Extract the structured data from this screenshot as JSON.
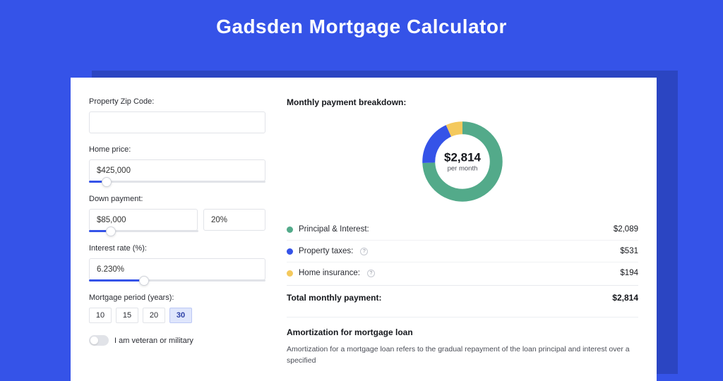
{
  "hero": {
    "title": "Gadsden Mortgage Calculator"
  },
  "form": {
    "zip": {
      "label": "Property Zip Code:",
      "value": ""
    },
    "price": {
      "label": "Home price:",
      "value": "$425,000",
      "slider_pct": 10
    },
    "down": {
      "label": "Down payment:",
      "amount": "$85,000",
      "pct": "20%",
      "slider_pct": 20
    },
    "rate": {
      "label": "Interest rate (%):",
      "value": "6.230%",
      "slider_pct": 31
    },
    "period": {
      "label": "Mortgage period (years):",
      "options": [
        "10",
        "15",
        "20",
        "30"
      ],
      "selected": "30"
    },
    "veteran": {
      "label": "I am veteran or military",
      "on": false
    }
  },
  "breakdown": {
    "title": "Monthly payment breakdown:",
    "donut": {
      "amount": "$2,814",
      "sub": "per month",
      "slices": [
        {
          "key": "pi",
          "color": "#53aa8a",
          "pct": 74.3
        },
        {
          "key": "tax",
          "color": "#3553e8",
          "pct": 18.8
        },
        {
          "key": "ins",
          "color": "#f4c95d",
          "pct": 6.9
        }
      ]
    },
    "rows": [
      {
        "key": "pi",
        "label": "Principal & Interest:",
        "color": "#53aa8a",
        "value": "$2,089",
        "info": false
      },
      {
        "key": "tax",
        "label": "Property taxes:",
        "color": "#3553e8",
        "value": "$531",
        "info": true
      },
      {
        "key": "ins",
        "label": "Home insurance:",
        "color": "#f4c95d",
        "value": "$194",
        "info": true
      }
    ],
    "total": {
      "label": "Total monthly payment:",
      "value": "$2,814"
    }
  },
  "amort": {
    "title": "Amortization for mortgage loan",
    "text": "Amortization for a mortgage loan refers to the gradual repayment of the loan principal and interest over a specified"
  },
  "style": {
    "bg": "#3553e8",
    "shadow_bg": "#2b45c2",
    "card_bg": "#ffffff",
    "donut_thickness": 16
  }
}
